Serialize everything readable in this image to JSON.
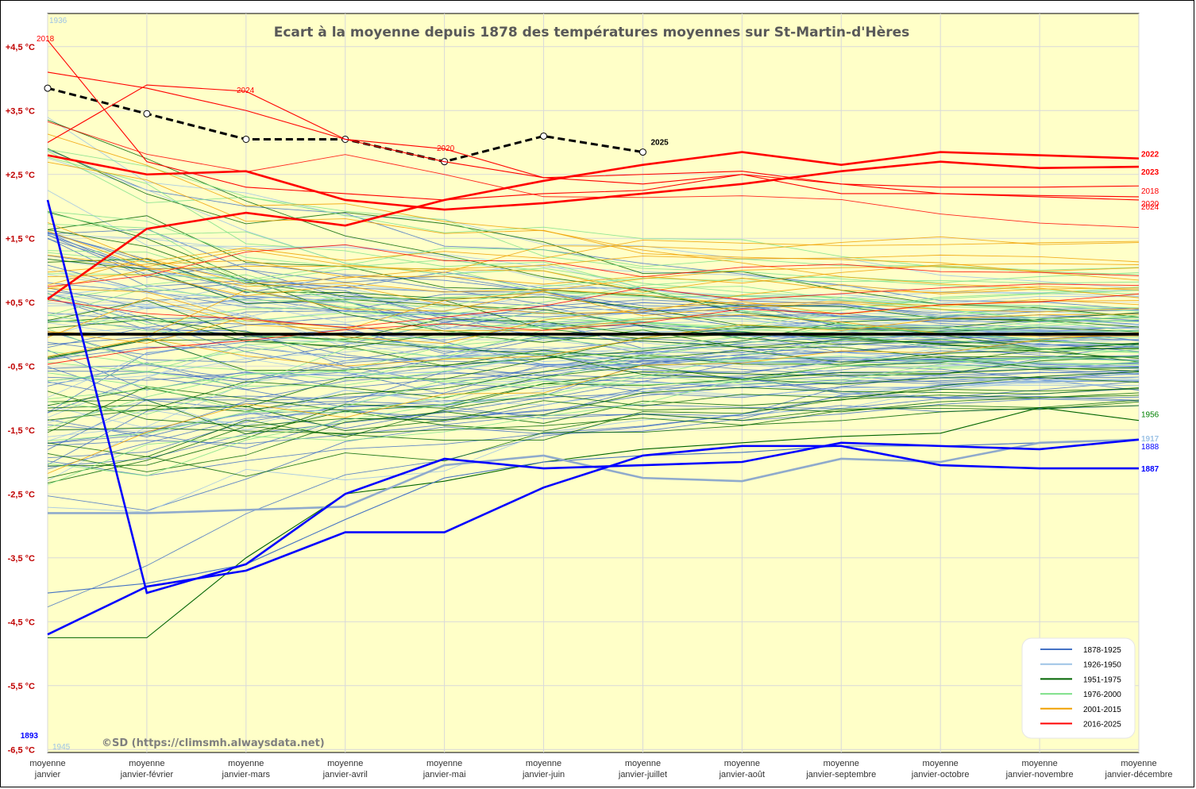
{
  "chart_data": {
    "type": "line",
    "title": "Ecart à la moyenne depuis 1878 des températures moyennes sur St-Martin-d'Hères",
    "credit": "©SD (https://climsmh.alwaysdata.net)",
    "x_categories": [
      [
        "moyenne",
        "janvier"
      ],
      [
        "moyenne",
        "janvier-février"
      ],
      [
        "moyenne",
        "janvier-mars"
      ],
      [
        "moyenne",
        "janvier-avril"
      ],
      [
        "moyenne",
        "janvier-mai"
      ],
      [
        "moyenne",
        "janvier-juin"
      ],
      [
        "moyenne",
        "janvier-juillet"
      ],
      [
        "moyenne",
        "janvier-août"
      ],
      [
        "moyenne",
        "janvier-septembre"
      ],
      [
        "moyenne",
        "janvier-octobre"
      ],
      [
        "moyenne",
        "janvier-novembre"
      ],
      [
        "moyenne",
        "janvier-décembre"
      ]
    ],
    "y_ticks": [
      {
        "value": 4.5,
        "label": "+4,5 °C"
      },
      {
        "value": 3.5,
        "label": "+3,5 °C"
      },
      {
        "value": 2.5,
        "label": "+2,5 °C"
      },
      {
        "value": 1.5,
        "label": "+1,5 °C"
      },
      {
        "value": 0.5,
        "label": "+0,5 °C"
      },
      {
        "value": -0.5,
        "label": "-0,5 °C"
      },
      {
        "value": -1.5,
        "label": "-1,5 °C"
      },
      {
        "value": -2.5,
        "label": "-2,5 °C"
      },
      {
        "value": -3.5,
        "label": "-3,5 °C"
      },
      {
        "value": -4.5,
        "label": "-4,5 °C"
      },
      {
        "value": -5.5,
        "label": "-5,5 °C"
      },
      {
        "value": -6.5,
        "label": "-6,5 °C"
      }
    ],
    "ylim": [
      -6.5,
      5
    ],
    "grid": true,
    "legend_position": "bottom-right",
    "legend": [
      {
        "label": "1878-1925",
        "color": "#4472c4"
      },
      {
        "label": "1926-1950",
        "color": "#9dc3e6"
      },
      {
        "label": "1951-1975",
        "color": "#006400"
      },
      {
        "label": "1976-2000",
        "color": "#7ee08a"
      },
      {
        "label": "2001-2015",
        "color": "#f0a000"
      },
      {
        "label": "2016-2025",
        "color": "#ff0000"
      }
    ],
    "highlighted_series": [
      {
        "name": "2025",
        "color": "#000000",
        "dashed": true,
        "markers": true,
        "label_color": "#000000",
        "values": [
          3.85,
          3.45,
          3.05,
          3.05,
          2.7,
          3.1,
          2.85
        ]
      },
      {
        "name": "2022",
        "color": "#ff0000",
        "bold": true,
        "label_color": "#ff0000",
        "values": [
          0.55,
          1.65,
          1.9,
          1.7,
          2.1,
          2.4,
          2.65,
          2.85,
          2.65,
          2.85,
          2.8,
          2.75
        ]
      },
      {
        "name": "2023",
        "color": "#ff0000",
        "bold": true,
        "label_color": "#ff0000",
        "values": [
          2.8,
          2.5,
          2.55,
          2.1,
          1.95,
          2.05,
          2.2,
          2.35,
          2.55,
          2.7,
          2.6,
          2.62
        ]
      },
      {
        "name": "1956",
        "color": "#006400",
        "label_color": "#008000",
        "values": [
          -4.75,
          -4.75,
          -3.5,
          -2.5,
          -2.3,
          -2.0,
          -1.8,
          -1.7,
          -1.6,
          -1.55,
          -1.15,
          -1.35
        ]
      },
      {
        "name": "1888",
        "color": "#4472c4",
        "label_color": "#0000ff",
        "values": [
          -4.05,
          -3.9,
          -3.6,
          -2.9,
          -2.25,
          -2.0,
          -1.9,
          -1.85,
          -1.75,
          -1.75,
          -1.7,
          -1.65
        ]
      },
      {
        "name": "1917",
        "color": "#8faacc",
        "bold": true,
        "label_color": "#9dc3e6",
        "values": [
          -2.8,
          -2.8,
          -2.75,
          -2.7,
          -2.05,
          -1.9,
          -2.25,
          -2.3,
          -1.95,
          -2.0,
          -1.7,
          -1.65
        ]
      },
      {
        "name": "1887",
        "color": "#0000ff",
        "bold": true,
        "label_color": "#0000ff",
        "values": [
          -4.7,
          -3.95,
          -3.7,
          -3.1,
          -3.1,
          -2.4,
          -1.9,
          -1.75,
          -1.75,
          -2.05,
          -2.1,
          -2.1
        ]
      },
      {
        "name": "1893",
        "color": "#0000ff",
        "bold": true,
        "label_color": "#0000ff",
        "values": [
          2.1,
          -4.05,
          -3.6,
          -2.5,
          -1.95,
          -2.1,
          -2.05,
          -2.0,
          -1.7,
          -1.75,
          -1.8,
          -1.65
        ]
      },
      {
        "name": "2018",
        "color": "#ff0000",
        "label_color": "#ff0000",
        "values": [
          4.6,
          2.7,
          2.3,
          2.2,
          2.1,
          2.2,
          2.25,
          2.5,
          2.35,
          2.3,
          2.3,
          2.32
        ]
      },
      {
        "name": "2020",
        "color": "#ff0000",
        "label_color": "#ff0000",
        "values": [
          4.1,
          3.85,
          3.5,
          3.05,
          2.7,
          2.45,
          2.35,
          2.5,
          2.2,
          2.2,
          2.17,
          2.15
        ]
      },
      {
        "name": "2024",
        "color": "#ff0000",
        "label_color": "#ff0000",
        "values": [
          3.0,
          3.9,
          3.8,
          3.05,
          2.9,
          2.45,
          2.5,
          2.55,
          2.35,
          2.2,
          2.15,
          2.1
        ]
      }
    ],
    "text_annotations": [
      {
        "text": "1936",
        "color": "#9dc3e6"
      },
      {
        "text": "1945",
        "color": "#9dc3e6"
      }
    ]
  }
}
